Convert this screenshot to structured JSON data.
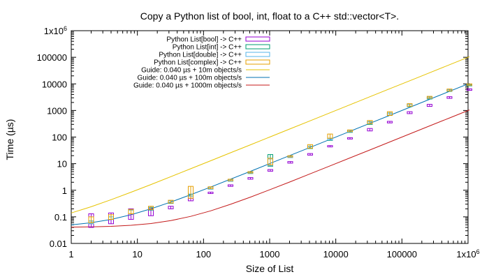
{
  "chart_data": {
    "type": "line",
    "title": "Copy a Python list of bool, int, float to a C++ std::vector<T>.",
    "xlabel": "Size of List",
    "ylabel": "Time (µs)",
    "xscale": "log",
    "yscale": "log",
    "xlim": [
      1,
      1000000
    ],
    "ylim": [
      0.01,
      1000000
    ],
    "grid": false,
    "legend_position": "top-left",
    "x_ticks": [
      {
        "value": 1,
        "label": "1"
      },
      {
        "value": 10,
        "label": "10"
      },
      {
        "value": 100,
        "label": "100"
      },
      {
        "value": 1000,
        "label": "1000"
      },
      {
        "value": 10000,
        "label": "10000"
      },
      {
        "value": 100000,
        "label": "100000"
      },
      {
        "value": 1000000,
        "label": "1x10",
        "sup": "6"
      }
    ],
    "y_ticks": [
      {
        "value": 0.01,
        "label": "0.01"
      },
      {
        "value": 0.1,
        "label": "0.1"
      },
      {
        "value": 1,
        "label": "1"
      },
      {
        "value": 10,
        "label": "10"
      },
      {
        "value": 100,
        "label": "100"
      },
      {
        "value": 1000,
        "label": "1000"
      },
      {
        "value": 10000,
        "label": "10000"
      },
      {
        "value": 100000,
        "label": "100000"
      },
      {
        "value": 1000000,
        "label": "1x10",
        "sup": "6"
      }
    ],
    "x": [
      2,
      4,
      8,
      16,
      32,
      64,
      128,
      256,
      512,
      1024,
      2048,
      4096,
      8192,
      16384,
      32768,
      65536,
      131072,
      262144,
      524288,
      1048576
    ],
    "series": [
      {
        "name": "Python List[bool] -> C++",
        "style": "box",
        "color": "#9400d3",
        "values": [
          0.045,
          0.065,
          0.09,
          0.13,
          0.22,
          0.44,
          0.8,
          1.5,
          2.8,
          5.5,
          11,
          22,
          45,
          90,
          180,
          360,
          800,
          1500,
          3000,
          6000
        ],
        "low": [
          0.04,
          0.055,
          0.08,
          0.11,
          0.2,
          0.4,
          0.75,
          1.4,
          2.6,
          5.2,
          10.5,
          21,
          43,
          85,
          170,
          340,
          760,
          1450,
          2900,
          5800
        ],
        "high": [
          0.13,
          0.14,
          0.2,
          0.2,
          0.25,
          0.5,
          0.85,
          1.6,
          3.0,
          6.0,
          12,
          24,
          48,
          95,
          210,
          390,
          900,
          1700,
          3300,
          6500
        ]
      },
      {
        "name": "Python List[int] -> C++",
        "style": "box",
        "color": "#009e73",
        "values": [
          0.06,
          0.09,
          0.15,
          0.2,
          0.35,
          0.65,
          1.2,
          2.3,
          4.5,
          13,
          18,
          40,
          80,
          160,
          330,
          700,
          1500,
          2900,
          5500,
          9000
        ],
        "low": [
          0.055,
          0.08,
          0.13,
          0.18,
          0.32,
          0.6,
          1.1,
          2.2,
          4.3,
          8,
          17,
          37,
          75,
          150,
          300,
          650,
          1400,
          2700,
          5200,
          8500
        ],
        "high": [
          0.07,
          0.1,
          0.18,
          0.22,
          0.4,
          0.7,
          1.3,
          2.5,
          4.8,
          22,
          19,
          45,
          90,
          180,
          380,
          800,
          1700,
          3200,
          6000,
          9500
        ]
      },
      {
        "name": "Python List[double] -> C++",
        "style": "box",
        "color": "#56b4e9",
        "values": [
          0.06,
          0.09,
          0.15,
          0.21,
          0.36,
          0.66,
          1.2,
          2.3,
          4.6,
          10,
          18,
          40,
          82,
          165,
          340,
          720,
          1550,
          3000,
          5600,
          9200
        ],
        "low": [
          0.055,
          0.08,
          0.13,
          0.19,
          0.33,
          0.6,
          1.1,
          2.2,
          4.4,
          8.5,
          17,
          38,
          78,
          155,
          320,
          680,
          1450,
          2800,
          5300,
          8800
        ],
        "high": [
          0.07,
          0.1,
          0.18,
          0.23,
          0.4,
          0.72,
          1.3,
          2.5,
          4.9,
          15,
          19,
          44,
          88,
          175,
          370,
          780,
          1700,
          3200,
          6000,
          9800
        ]
      },
      {
        "name": "Python List[complex] -> C++",
        "style": "box",
        "color": "#e69f00",
        "values": [
          0.08,
          0.1,
          0.16,
          0.22,
          0.38,
          0.8,
          1.25,
          2.4,
          4.8,
          12,
          19,
          45,
          100,
          170,
          360,
          750,
          1600,
          3100,
          5800,
          9500
        ],
        "low": [
          0.06,
          0.08,
          0.13,
          0.19,
          0.33,
          0.5,
          1.15,
          2.3,
          4.6,
          9,
          18,
          38,
          90,
          160,
          320,
          650,
          1450,
          2900,
          5400,
          9000
        ],
        "high": [
          0.1,
          0.12,
          0.19,
          0.25,
          0.42,
          1.4,
          1.35,
          2.6,
          5.0,
          16,
          20,
          52,
          130,
          185,
          420,
          900,
          1800,
          3400,
          6400,
          10000
        ]
      },
      {
        "name": "Guide: 0.040 µs + 10m objects/s",
        "style": "line",
        "color": "#e6c300",
        "x": [
          1,
          2,
          4,
          8,
          16,
          32,
          64,
          128,
          256,
          512,
          1024,
          2048,
          4096,
          8192,
          16384,
          32768,
          65536,
          131072,
          262144,
          524288,
          1048576
        ],
        "values": [
          0.14,
          0.24,
          0.44,
          0.84,
          1.64,
          3.24,
          6.44,
          12.84,
          25.64,
          51.24,
          102.44,
          204.84,
          409.64,
          819.24,
          1638.44,
          3276.84,
          6553.64,
          13107.24,
          26214.44,
          52428.84,
          104857.64
        ]
      },
      {
        "name": "Guide: 0.040 µs + 100m objects/s",
        "style": "line",
        "color": "#0072b2",
        "x": [
          1,
          2,
          4,
          8,
          16,
          32,
          64,
          128,
          256,
          512,
          1024,
          2048,
          4096,
          8192,
          16384,
          32768,
          65536,
          131072,
          262144,
          524288,
          1048576
        ],
        "values": [
          0.05,
          0.06,
          0.08,
          0.12,
          0.2,
          0.36,
          0.68,
          1.32,
          2.6,
          5.16,
          10.28,
          20.52,
          41.0,
          81.96,
          163.88,
          327.72,
          655.4,
          1310.76,
          2621.48,
          5242.92,
          10485.8
        ]
      },
      {
        "name": "Guide: 0.040 µs + 1000m objects/s",
        "style": "line",
        "color": "#c41a1a",
        "x": [
          1,
          2,
          4,
          8,
          16,
          32,
          64,
          128,
          256,
          512,
          1024,
          2048,
          4096,
          8192,
          16384,
          32768,
          65536,
          131072,
          262144,
          524288,
          1048576
        ],
        "values": [
          0.041,
          0.042,
          0.044,
          0.048,
          0.056,
          0.072,
          0.104,
          0.168,
          0.296,
          0.552,
          1.064,
          2.088,
          4.136,
          8.232,
          16.424,
          32.808,
          65.576,
          131.112,
          262.184,
          524.328,
          1048.616
        ]
      }
    ]
  }
}
